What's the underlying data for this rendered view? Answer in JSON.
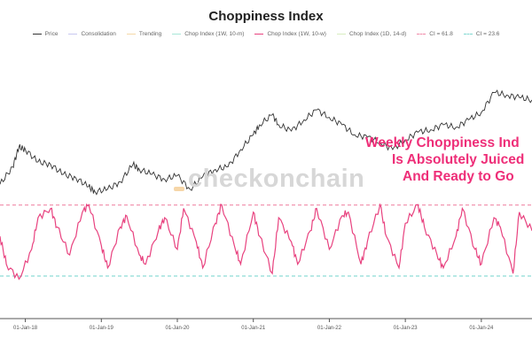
{
  "chart_data": {
    "type": "line",
    "title": "Choppiness Index",
    "legend": {
      "placement": "top",
      "items": [
        {
          "label": "Price",
          "color": "#333333",
          "style": "solid"
        },
        {
          "label": "Consolidation",
          "color": "#c8c8f0",
          "style": "solid"
        },
        {
          "label": "Trending",
          "color": "#f5d9a8",
          "style": "solid"
        },
        {
          "label": "Chop Index (1W, 10-m)",
          "color": "#a8e6d8",
          "style": "solid"
        },
        {
          "label": "Chop Index (1W, 10-w)",
          "color": "#e8427f",
          "style": "solid"
        },
        {
          "label": "Chop Index (1D, 14-d)",
          "color": "#d8eec0",
          "style": "solid"
        },
        {
          "label": "CI = 61.8",
          "color": "#f08aa8",
          "style": "dashed"
        },
        {
          "label": "CI = 23.6",
          "color": "#7fd8d0",
          "style": "dashed"
        }
      ]
    },
    "x_tick_labels": [
      "01-Jan-18",
      "01-Jan-19",
      "01-Jan-20",
      "01-Jan-21",
      "01-Jan-22",
      "01-Jan-23",
      "01-Jan-24"
    ],
    "x_range": [
      "2017-09-01",
      "2024-09-01"
    ],
    "price_series": {
      "name": "Price",
      "color": "#333333",
      "x": [
        "2017-09",
        "2017-11",
        "2017-12",
        "2018-01",
        "2018-03",
        "2018-05",
        "2018-07",
        "2018-09",
        "2018-11",
        "2018-12",
        "2019-02",
        "2019-04",
        "2019-06",
        "2019-07",
        "2019-09",
        "2019-11",
        "2020-01",
        "2020-03",
        "2020-05",
        "2020-07",
        "2020-09",
        "2020-11",
        "2021-01",
        "2021-02",
        "2021-04",
        "2021-05",
        "2021-07",
        "2021-09",
        "2021-11",
        "2022-01",
        "2022-03",
        "2022-05",
        "2022-07",
        "2022-09",
        "2022-11",
        "2023-01",
        "2023-03",
        "2023-05",
        "2023-07",
        "2023-09",
        "2023-11",
        "2024-01",
        "2024-03",
        "2024-05",
        "2024-07",
        "2024-09"
      ],
      "y_relative": [
        12,
        26,
        42,
        40,
        30,
        28,
        20,
        17,
        10,
        6,
        8,
        14,
        28,
        24,
        20,
        16,
        19,
        8,
        18,
        24,
        26,
        40,
        52,
        60,
        68,
        60,
        55,
        64,
        72,
        66,
        60,
        52,
        50,
        46,
        40,
        48,
        54,
        56,
        60,
        58,
        64,
        70,
        86,
        84,
        82,
        80
      ],
      "scale": "relative, no printed price axis"
    },
    "choppiness_series": {
      "name": "Chop Index (1W, 10-w)",
      "color": "#e8427f",
      "x": [
        "2017-09",
        "2017-10",
        "2017-12",
        "2018-02",
        "2018-03",
        "2018-05",
        "2018-06",
        "2018-08",
        "2018-10",
        "2018-11",
        "2019-01",
        "2019-02",
        "2019-04",
        "2019-05",
        "2019-07",
        "2019-08",
        "2019-10",
        "2019-11",
        "2020-01",
        "2020-02",
        "2020-04",
        "2020-05",
        "2020-07",
        "2020-08",
        "2020-10",
        "2020-11",
        "2021-01",
        "2021-02",
        "2021-04",
        "2021-05",
        "2021-07",
        "2021-08",
        "2021-10",
        "2021-11",
        "2022-01",
        "2022-03",
        "2022-04",
        "2022-06",
        "2022-07",
        "2022-09",
        "2022-10",
        "2022-12",
        "2023-01",
        "2023-03",
        "2023-04",
        "2023-06",
        "2023-07",
        "2023-09",
        "2023-10",
        "2023-12",
        "2024-01",
        "2024-03",
        "2024-04",
        "2024-06",
        "2024-07",
        "2024-09"
      ],
      "values": [
        45,
        30,
        22,
        38,
        55,
        60,
        50,
        35,
        58,
        62,
        40,
        28,
        50,
        56,
        35,
        30,
        48,
        55,
        38,
        60,
        42,
        28,
        52,
        62,
        40,
        30,
        58,
        45,
        25,
        55,
        42,
        30,
        48,
        60,
        38,
        56,
        58,
        30,
        42,
        62,
        45,
        28,
        52,
        62,
        50,
        35,
        28,
        45,
        60,
        38,
        30,
        55,
        50,
        25,
        58,
        48
      ],
      "reference_lines": [
        61.8,
        23.6
      ],
      "y_range": [
        15,
        65
      ]
    }
  },
  "watermark": "checkonchain",
  "annotation": {
    "lines": [
      "Weekly Choppiness Ind",
      "Is Absolutely Juiced",
      "And Ready to Go"
    ],
    "color": "#ee2e78"
  }
}
